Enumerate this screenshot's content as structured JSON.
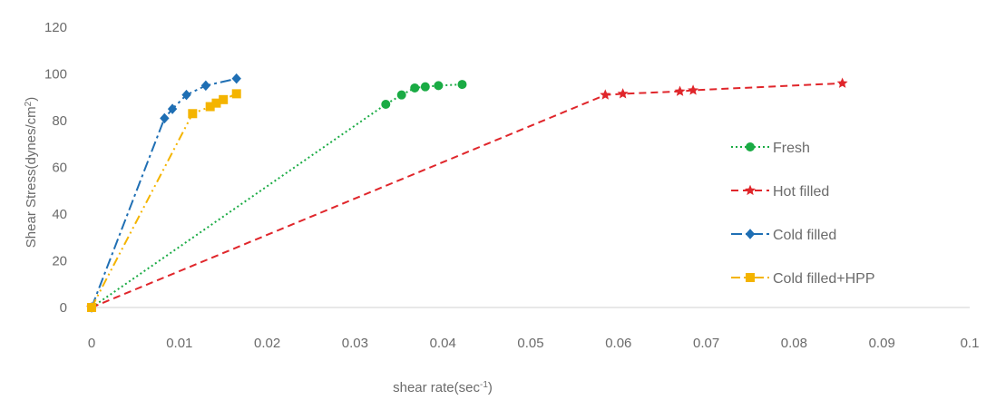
{
  "chart_data": {
    "type": "scatter",
    "xlabel": "shear rate(sec",
    "xlabel_sup": "-1",
    "xlabel_close": ")",
    "ylabel": "Shear Stress(dynes/cm",
    "ylabel_sup": "2",
    "ylabel_close": ")",
    "xlim": [
      0,
      0.1
    ],
    "ylim": [
      0,
      120
    ],
    "x_ticks": [
      "0",
      "0.01",
      "0.02",
      "0.03",
      "0.04",
      "0.05",
      "0.06",
      "0.07",
      "0.08",
      "0.09",
      "0.1"
    ],
    "y_ticks": [
      "0",
      "20",
      "40",
      "60",
      "80",
      "100",
      "120"
    ],
    "grid": false,
    "legend_position": "right",
    "series": [
      {
        "name": "Fresh",
        "color": "#1aab44",
        "marker": "circle",
        "line": "dotted",
        "points": [
          [
            0,
            0
          ],
          [
            0.0335,
            87
          ],
          [
            0.0353,
            91
          ],
          [
            0.0368,
            94
          ],
          [
            0.038,
            94.5
          ],
          [
            0.0395,
            95
          ],
          [
            0.0422,
            95.5
          ]
        ]
      },
      {
        "name": "Hot filled",
        "color": "#e0262b",
        "marker": "triangle",
        "line": "dashed",
        "points": [
          [
            0,
            0
          ],
          [
            0.0585,
            91
          ],
          [
            0.0605,
            91.5
          ],
          [
            0.067,
            92.5
          ],
          [
            0.0685,
            93
          ],
          [
            0.0855,
            96
          ]
        ]
      },
      {
        "name": "Cold filled",
        "color": "#1f6fb4",
        "marker": "diamond",
        "line": "dashdot",
        "points": [
          [
            0,
            0
          ],
          [
            0.0083,
            81
          ],
          [
            0.0092,
            85
          ],
          [
            0.0108,
            91
          ],
          [
            0.013,
            95
          ],
          [
            0.0165,
            98
          ]
        ]
      },
      {
        "name": "Cold filled+HPP",
        "color": "#f4b400",
        "marker": "square",
        "line": "dashdotdot",
        "points": [
          [
            0,
            0
          ],
          [
            0.0115,
            83
          ],
          [
            0.0135,
            86
          ],
          [
            0.0142,
            87.5
          ],
          [
            0.015,
            89
          ],
          [
            0.0165,
            91.5
          ]
        ]
      }
    ]
  }
}
